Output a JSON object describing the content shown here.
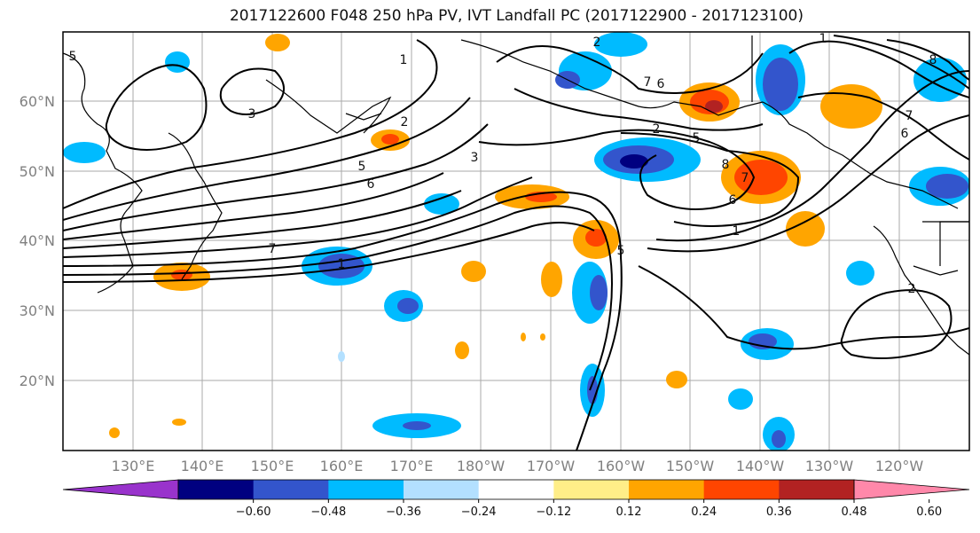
{
  "title": "2017122600 F048 250 hPa PV, IVT Landfall PC (2017122900 - 2017123100)",
  "lat_labels": [
    "60°N",
    "50°N",
    "40°N",
    "30°N",
    "20°N"
  ],
  "lon_labels": [
    "130°E",
    "140°E",
    "150°E",
    "160°E",
    "170°E",
    "180°W",
    "170°W",
    "160°W",
    "150°W",
    "140°W",
    "130°W",
    "120°W"
  ],
  "colorbar": {
    "colors": [
      "#9933cc",
      "#000080",
      "#3355cc",
      "#00bbff",
      "#b3e0ff",
      "#ffffff",
      "#ffee88",
      "#ffa500",
      "#ff4500",
      "#b22222",
      "#ff88aa"
    ],
    "ticks": [
      "−0.60",
      "−0.48",
      "−0.36",
      "−0.24",
      "−0.12",
      "0.12",
      "0.24",
      "0.36",
      "0.48",
      "0.60"
    ]
  },
  "contour_labels": [
    "5",
    "1",
    "3",
    "2",
    "3",
    "5",
    "6",
    "7",
    "1",
    "6",
    "7",
    "2",
    "5",
    "8",
    "7",
    "6",
    "1",
    "2",
    "5",
    "1",
    "8",
    "7",
    "6",
    "2"
  ],
  "anomaly_colors": {
    "neg_light": "#b3e0ff",
    "neg_mid": "#00bbff",
    "neg_strong": "#3355cc",
    "neg_max": "#000080",
    "pos_light": "#ffee88",
    "pos_mid": "#ffa500",
    "pos_strong": "#ff4500",
    "pos_max": "#b22222"
  }
}
